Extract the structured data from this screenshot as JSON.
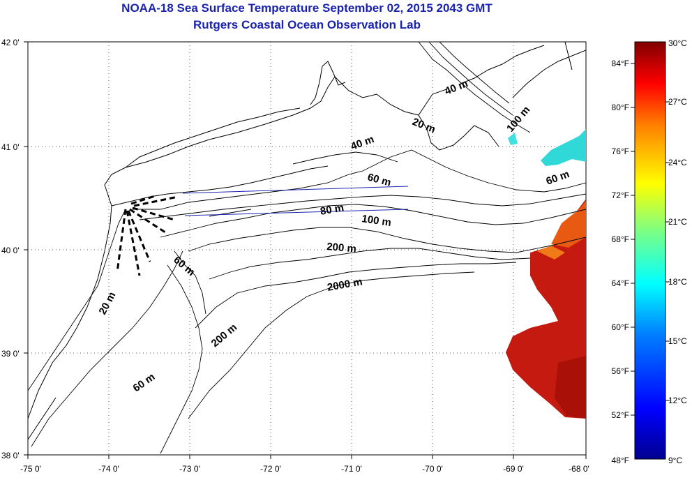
{
  "title_line1": "NOAA-18 Sea Surface Temperature September 02, 2015 2043 GMT",
  "title_line2": "Rutgers Coastal Ocean Observation Lab",
  "lon_labels": [
    "-75 0'",
    "-74 0'",
    "-73 0'",
    "-72 0'",
    "-71 0'",
    "-70 0'",
    "-69 0'",
    "-68 0'"
  ],
  "lat_labels": [
    "42 0'",
    "41 0'",
    "40 0'",
    "39 0'",
    "38 0'"
  ],
  "contour_labels": {
    "c20a": "20 m",
    "c20b": "20 m",
    "c40a": "40 m",
    "c40b": "40 m",
    "c60a": "60 m",
    "c60b": "60 m",
    "c60c": "60 m",
    "c60d": "60 m",
    "c80": "80 m",
    "c100a": "100 m",
    "c100b": "100 m",
    "c200a": "200 m",
    "c200b": "200 m",
    "c2000": "2000 m"
  },
  "colorbar": {
    "fahrenheit": [
      "84°F",
      "80°F",
      "76°F",
      "72°F",
      "68°F",
      "64°F",
      "60°F",
      "56°F",
      "52°F",
      "48°F"
    ],
    "celsius": [
      "30°C",
      "27°C",
      "24°C",
      "21°C",
      "18°C",
      "15°C",
      "12°C",
      "9°C"
    ],
    "colors": [
      "#00008f",
      "#0000ff",
      "#0080ff",
      "#00ffff",
      "#80ff80",
      "#ffff00",
      "#ff8000",
      "#ff0000",
      "#800000"
    ]
  }
}
